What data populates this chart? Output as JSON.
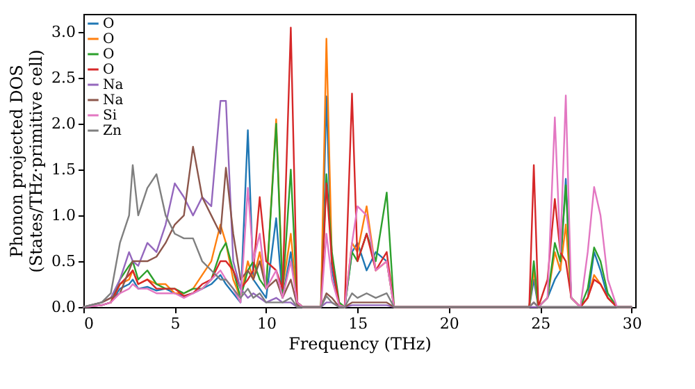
{
  "chart_data": {
    "type": "line",
    "xlabel": "Frequency (THz)",
    "ylabel": "Phonon projected DOS\n(States/THz·primitive cell)",
    "xlim": [
      0,
      30.2
    ],
    "ylim": [
      0,
      3.2
    ],
    "xticks": [
      0,
      5,
      10,
      15,
      20,
      25,
      30
    ],
    "yticks": [
      {
        "value": 0,
        "label": "0.0"
      },
      {
        "value": 0.5,
        "label": "0.5"
      },
      {
        "value": 1,
        "label": "1.0"
      },
      {
        "value": 1.5,
        "label": "1.5"
      },
      {
        "value": 2,
        "label": "2.0"
      },
      {
        "value": 2.5,
        "label": "2.5"
      },
      {
        "value": 3,
        "label": "3.0"
      }
    ],
    "grid": false,
    "legend": "top left",
    "marker": "none",
    "line_style": "solid",
    "x": [
      0,
      1,
      1.5,
      2,
      2.5,
      2.7,
      3,
      3.5,
      4,
      4.5,
      5,
      5.5,
      6,
      6.5,
      7,
      7.5,
      7.8,
      8.2,
      8.6,
      9.0,
      9.3,
      9.65,
      10,
      10.55,
      10.9,
      11.35,
      11.7,
      12,
      13.0,
      13.3,
      13.6,
      14,
      14.3,
      14.7,
      15.0,
      15.5,
      16,
      16.6,
      17,
      24.4,
      24.65,
      24.9,
      25.4,
      25.8,
      26.1,
      26.4,
      26.7,
      27.2,
      27.6,
      27.95,
      28.3,
      28.7,
      29.2,
      30
    ],
    "series": [
      {
        "name": "O",
        "color": "#1f77b4",
        "values": [
          0,
          0.02,
          0.05,
          0.2,
          0.25,
          0.3,
          0.2,
          0.22,
          0.18,
          0.2,
          0.15,
          0.12,
          0.15,
          0.2,
          0.25,
          0.35,
          0.25,
          0.15,
          0.05,
          1.93,
          0.3,
          0.2,
          0.1,
          0.97,
          0.1,
          0.6,
          0.05,
          0,
          0,
          2.3,
          0.4,
          0.02,
          0,
          0.6,
          0.7,
          0.4,
          0.6,
          0.5,
          0,
          0,
          0.3,
          0,
          0.1,
          0.3,
          0.4,
          1.4,
          0.1,
          0,
          0.1,
          0.6,
          0.4,
          0.1,
          0,
          0
        ]
      },
      {
        "name": "O",
        "color": "#ff7f0e",
        "values": [
          null,
          null,
          0.05,
          0.25,
          0.3,
          0.4,
          0.25,
          0.3,
          0.25,
          0.25,
          0.15,
          0.15,
          0.2,
          0.35,
          0.5,
          0.9,
          0.7,
          0.3,
          0.1,
          0.5,
          0.3,
          0.6,
          0.2,
          2.05,
          0.2,
          0.8,
          0.05,
          0,
          0,
          2.93,
          0.5,
          0.02,
          0,
          0.7,
          0.6,
          1.1,
          0.4,
          0.5,
          0,
          0,
          0.4,
          0,
          0.1,
          0.6,
          0.4,
          0.9,
          0.1,
          0,
          0.1,
          0.35,
          0.25,
          0.1,
          0,
          0
        ]
      },
      {
        "name": "O",
        "color": "#2ca02c",
        "values": [
          null,
          null,
          0.05,
          0.3,
          0.45,
          0.5,
          0.3,
          0.4,
          0.25,
          0.2,
          0.2,
          0.15,
          0.2,
          0.2,
          0.3,
          0.6,
          0.7,
          0.4,
          0.1,
          0.4,
          0.5,
          0.3,
          0.2,
          2.0,
          0.15,
          1.5,
          0.05,
          0,
          0,
          1.45,
          0.6,
          0.05,
          0,
          0.6,
          0.5,
          0.8,
          0.5,
          1.25,
          0,
          0,
          0.5,
          0,
          0.1,
          0.7,
          0.5,
          1.33,
          0.1,
          0,
          0.2,
          0.65,
          0.5,
          0.15,
          0,
          0
        ]
      },
      {
        "name": "O",
        "color": "#d62728",
        "values": [
          0,
          0.02,
          0.05,
          0.25,
          0.35,
          0.4,
          0.25,
          0.3,
          0.2,
          0.2,
          0.2,
          0.12,
          0.15,
          0.25,
          0.3,
          0.5,
          0.5,
          0.4,
          0.2,
          0.3,
          0.4,
          1.2,
          0.5,
          0.4,
          0.2,
          3.05,
          0.05,
          0,
          0,
          1.35,
          0.5,
          0.02,
          0,
          2.33,
          0.5,
          0.8,
          0.4,
          0.6,
          0,
          0,
          1.55,
          0,
          0.3,
          1.18,
          0.6,
          0.5,
          0.1,
          0,
          0.1,
          0.3,
          0.25,
          0.1,
          0,
          0
        ]
      },
      {
        "name": "Na",
        "color": "#9467bd",
        "values": [
          0,
          0.05,
          0.1,
          0.3,
          0.6,
          0.5,
          0.45,
          0.7,
          0.6,
          0.9,
          1.35,
          1.2,
          1.0,
          1.2,
          1.1,
          2.25,
          2.25,
          0.5,
          0.2,
          0.1,
          0.15,
          0.1,
          0.05,
          0.1,
          0.05,
          0.05,
          0,
          0,
          0,
          0.05,
          0.05,
          0,
          0,
          0.02,
          0.02,
          0.02,
          0.02,
          0.02,
          0,
          0,
          0,
          0,
          0,
          0,
          0,
          0,
          0,
          0,
          0,
          0,
          0,
          0,
          0,
          0
        ]
      },
      {
        "name": "Na",
        "color": "#8c564b",
        "values": [
          0,
          0.05,
          0.1,
          0.15,
          0.4,
          0.5,
          0.5,
          0.5,
          0.55,
          0.7,
          0.9,
          1.0,
          1.75,
          1.2,
          1.0,
          0.8,
          1.52,
          0.8,
          0.3,
          0.4,
          0.3,
          0.5,
          0.2,
          0.3,
          0.1,
          0.3,
          0.02,
          0,
          0,
          0.15,
          0.1,
          0,
          0,
          0.05,
          0.05,
          0.05,
          0.05,
          0.05,
          0,
          0,
          0.05,
          0,
          0,
          0,
          0,
          0,
          0,
          0,
          0,
          0,
          0,
          0,
          0,
          0
        ]
      },
      {
        "name": "Si",
        "color": "#e377c2",
        "values": [
          0,
          0.02,
          0.05,
          0.15,
          0.2,
          0.25,
          0.2,
          0.2,
          0.15,
          0.15,
          0.15,
          0.1,
          0.15,
          0.2,
          0.3,
          0.4,
          0.3,
          0.2,
          0.05,
          1.3,
          0.5,
          0.8,
          0.2,
          0.4,
          0.1,
          0.5,
          0.05,
          0,
          0,
          0.8,
          0.3,
          0.02,
          0,
          0.7,
          1.1,
          1.0,
          0.4,
          0.5,
          0,
          0,
          0.05,
          0,
          0.1,
          2.07,
          0.6,
          2.31,
          0.1,
          0,
          0.6,
          1.31,
          1.0,
          0.3,
          0,
          0
        ]
      },
      {
        "name": "Zn",
        "color": "#7f7f7f",
        "values": [
          0,
          0.05,
          0.15,
          0.7,
          1.0,
          1.55,
          1.0,
          1.3,
          1.45,
          1.0,
          0.8,
          0.75,
          0.75,
          0.5,
          0.4,
          0.3,
          0.3,
          0.2,
          0.1,
          0.2,
          0.1,
          0.15,
          0.05,
          0.05,
          0.05,
          0.1,
          0,
          0,
          0,
          0.12,
          0.05,
          0,
          0,
          0.15,
          0.1,
          0.15,
          0.1,
          0.15,
          0,
          0,
          0.05,
          0,
          0,
          0,
          0,
          0,
          0,
          0,
          0,
          0,
          0,
          0,
          0,
          0
        ]
      }
    ]
  }
}
